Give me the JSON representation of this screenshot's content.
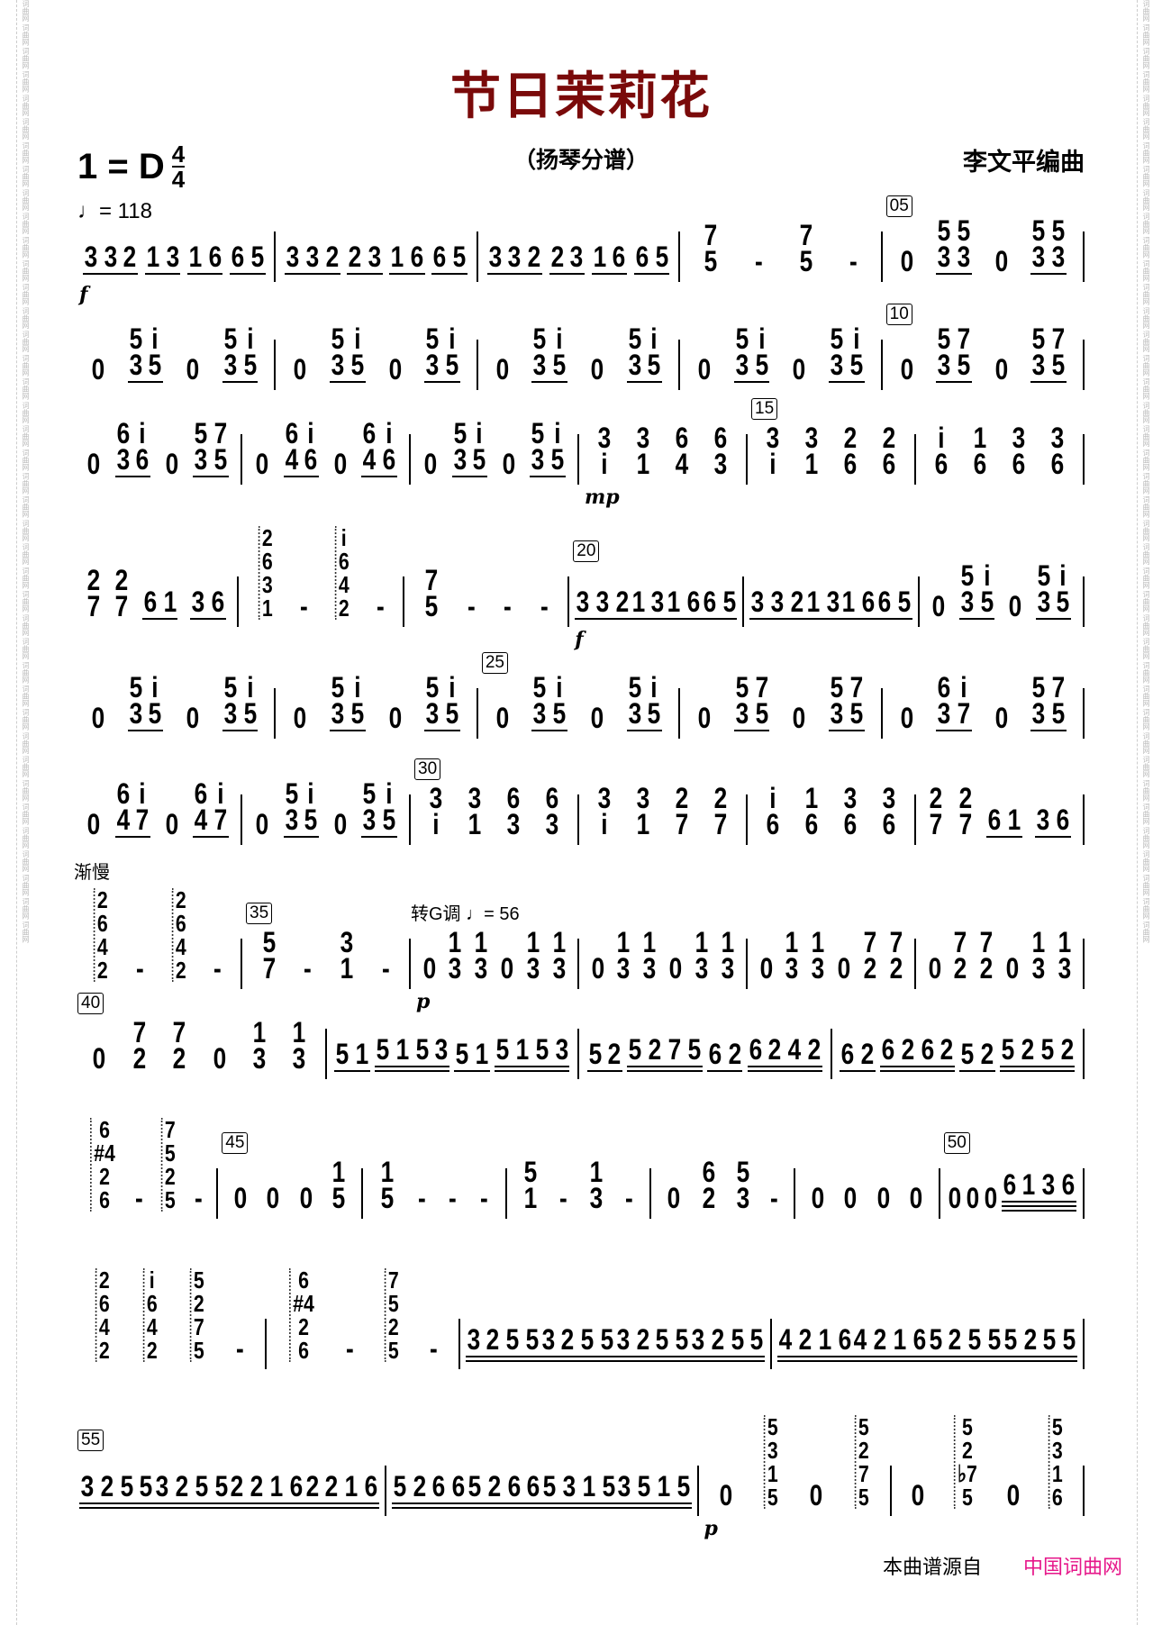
{
  "title": "节日茉莉花",
  "subtitle": "（扬琴分谱）",
  "composer": "李文平编曲",
  "key": {
    "tonic": "1 = D",
    "time_top": "4",
    "time_bottom": "4"
  },
  "tempo": "♩= 118",
  "colors": {
    "title": "#7a0a0a",
    "source_link": "#e6178a"
  },
  "edge_watermark": "词曲网",
  "lines": [
    [
      {
        "g": [
          "3,3,2_",
          "1,3_",
          "1,6_",
          "6,5_"
        ],
        "dyn": "f"
      },
      {
        "g": [
          "3,3,2_",
          "2,3_",
          "1,6_",
          "6,5_"
        ]
      },
      {
        "g": [
          "3,3,2_",
          "2,3_",
          "1,6_",
          "6,5_"
        ]
      },
      {
        "g": [
          "7/5",
          "-",
          "7/5",
          "-"
        ]
      },
      {
        "g": [
          "0",
          "5/3,5/3_",
          "0",
          "5/3,5/3_"
        ],
        "mark": "05"
      }
    ],
    [
      {
        "g": [
          "0",
          "5/3,i/5_",
          "0",
          "5/3,i/5_"
        ]
      },
      {
        "g": [
          "0",
          "5/3,i/5_",
          "0",
          "5/3,i/5_"
        ]
      },
      {
        "g": [
          "0",
          "5/3,i/5_",
          "0",
          "5/3,i/5_"
        ]
      },
      {
        "g": [
          "0",
          "5/3,i/5_",
          "0",
          "5/3,i/5_"
        ]
      },
      {
        "g": [
          "0",
          "5/3,7/5_",
          "0",
          "5/3,7/5_"
        ],
        "mark": "10"
      }
    ],
    [
      {
        "g": [
          "0",
          "6/3,i/6_",
          "0",
          "5/3,7/5_"
        ]
      },
      {
        "g": [
          "0",
          "6/4,i/6_",
          "0",
          "6/4,i/6_"
        ]
      },
      {
        "g": [
          "0",
          "5/3,i/5_",
          "0",
          "5/3,i/5_"
        ]
      },
      {
        "g": [
          "3/i",
          "3/1",
          "6/4",
          "6/3"
        ],
        "dyn": "mp"
      },
      {
        "g": [
          "3/i",
          "3/1",
          "2/6",
          "2/6"
        ],
        "mark": "15"
      },
      {
        "g": [
          "i/6",
          "1/6",
          "3/6",
          "3/6"
        ]
      }
    ],
    [
      {
        "g": [
          "2/7",
          "2/7",
          "6,1_",
          "3,6_"
        ]
      },
      {
        "g": [
          "[2,6,3,1]",
          "-",
          "[i,6,4,2]",
          "-"
        ]
      },
      {
        "g": [
          "7/5",
          "-",
          "-",
          "-"
        ]
      },
      {
        "g": [
          "3,3,2_",
          "1,3_",
          "1,6_",
          "6,5_"
        ],
        "mark": "20",
        "dyn": "f"
      },
      {
        "g": [
          "3,3,2_",
          "1,3_",
          "1,6_",
          "6,5_"
        ]
      },
      {
        "g": [
          "0",
          "5/3,i/5_",
          "0",
          "5/3,i/5_"
        ]
      }
    ],
    [
      {
        "g": [
          "0",
          "5/3,i/5_",
          "0",
          "5/3,i/5_"
        ]
      },
      {
        "g": [
          "0",
          "5/3,i/5_",
          "0",
          "5/3,i/5_"
        ]
      },
      {
        "g": [
          "0",
          "5/3,i/5_",
          "0",
          "5/3,i/5_"
        ],
        "mark": "25"
      },
      {
        "g": [
          "0",
          "5/3,7/5_",
          "0",
          "5/3,7/5_"
        ]
      },
      {
        "g": [
          "0",
          "6/3,i/7_",
          "0",
          "5/3,7/5_"
        ]
      }
    ],
    [
      {
        "g": [
          "0",
          "6/4,i/7_",
          "0",
          "6/4,i/7_"
        ]
      },
      {
        "g": [
          "0",
          "5/3,i/5_",
          "0",
          "5/3,i/5_"
        ]
      },
      {
        "g": [
          "3/i",
          "3/1",
          "6/3",
          "6/3"
        ],
        "mark": "30"
      },
      {
        "g": [
          "3/i",
          "3/1",
          "2/7",
          "2/7"
        ]
      },
      {
        "g": [
          "i/6",
          "1/6",
          "3/6",
          "3/6"
        ]
      },
      {
        "g": [
          "2/7",
          "2/7",
          "6,1_",
          "3,6_"
        ]
      }
    ],
    [
      {
        "g": [
          "[2,6,4,2]",
          "-",
          "[2,6,4,2]",
          "-"
        ],
        "ann": "渐慢"
      },
      {
        "g": [
          "5/7",
          "-",
          "3/1",
          "-"
        ],
        "mark": "35"
      },
      {
        "g": [
          "0",
          "1/3",
          "1/3",
          "0",
          "1/3",
          "1/3"
        ],
        "ann": "转G调 ♩= 56",
        "dyn": "p"
      },
      {
        "g": [
          "0",
          "1/3",
          "1/3",
          "0",
          "1/3",
          "1/3"
        ]
      },
      {
        "g": [
          "0",
          "1/3",
          "1/3",
          "0",
          "7/2",
          "7/2"
        ]
      },
      {
        "g": [
          "0",
          "7/2",
          "7/2",
          "0",
          "1/3",
          "1/3"
        ]
      }
    ],
    [
      {
        "g": [
          "0",
          "7/2",
          "7/2",
          "0",
          "1/3",
          "1/3"
        ],
        "mark": "40"
      },
      {
        "g": [
          "5,1_",
          "5,1,5,3__",
          "5,1_",
          "5,1,5,3__"
        ]
      },
      {
        "g": [
          "5,2_",
          "5,2,7,5__",
          "6,2_",
          "6,2,4,2__"
        ]
      },
      {
        "g": [
          "6,2_",
          "6,2,6,2__",
          "5,2_",
          "5,2,5,2__"
        ]
      }
    ],
    [
      {
        "g": [
          "[6,#4,2,6]",
          "-",
          "[7,5,2,5]",
          "-"
        ]
      },
      {
        "g": [
          "0",
          "0",
          "0",
          "1/5"
        ],
        "mark": "45"
      },
      {
        "g": [
          "1/5",
          "-",
          "-",
          "-"
        ]
      },
      {
        "g": [
          "5/1",
          "-",
          "1/3",
          "-"
        ]
      },
      {
        "g": [
          "0",
          "6/2",
          "5/3",
          "-"
        ]
      },
      {
        "g": [
          "0",
          "0",
          "0",
          "0"
        ]
      },
      {
        "g": [
          "0",
          "0",
          "0",
          "6,1,3,6___"
        ],
        "mark": "50"
      }
    ],
    [
      {
        "g": [
          "[2,6,4,2]",
          "[i,6,4,2]",
          "[5,2,7,5]",
          "-"
        ]
      },
      {
        "g": [
          "[6,#4,2,6]",
          "-",
          "[7,5,2,5]",
          "-"
        ]
      },
      {
        "g": [
          "3,2,5,5__",
          "3,2,5,5__",
          "3,2,5,5__",
          "3,2,5,5__"
        ]
      },
      {
        "g": [
          "4,2,1,6__",
          "4,2,1,6__",
          "5,2,5,5__",
          "5,2,5,5__"
        ]
      }
    ],
    [
      {
        "g": [
          "3,2,5,5__",
          "3,2,5,5__",
          "2,2,1,6__",
          "2,2,1,6__"
        ],
        "mark": "55"
      },
      {
        "g": [
          "5,2,6,6__",
          "5,2,6,6__",
          "5,3,1,5__",
          "3,5,1,5__"
        ]
      },
      {
        "g": [
          "0",
          "[5,3,1,5]",
          "0",
          "[5,2,7,5]"
        ],
        "dyn": "p"
      },
      {
        "g": [
          "0",
          "[5,2,♭7,5]",
          "0",
          "[5,3,1,6]"
        ]
      }
    ]
  ],
  "footer": {
    "text": "本曲谱源自",
    "source": "中国词曲网"
  }
}
